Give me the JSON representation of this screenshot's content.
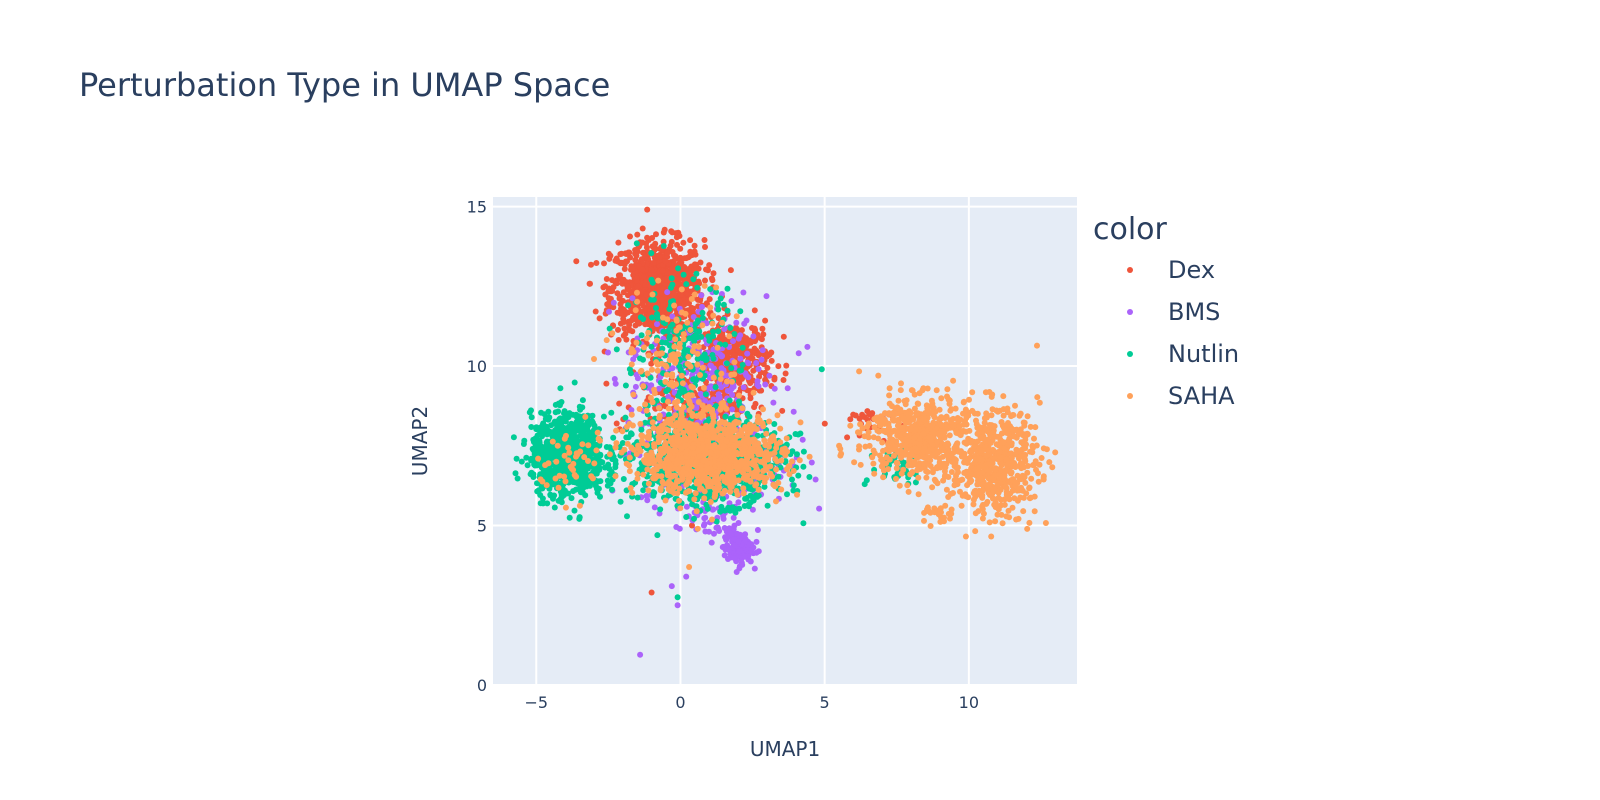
{
  "chart_data": {
    "type": "scatter",
    "title": "Perturbation Type in UMAP Space",
    "xlabel": "UMAP1",
    "ylabel": "UMAP2",
    "xlim": [
      -6.5,
      13.75
    ],
    "ylim": [
      0,
      15.3
    ],
    "xticks": [
      -5,
      0,
      5,
      10
    ],
    "xtick_labels": [
      "−5",
      "0",
      "5",
      "10"
    ],
    "yticks": [
      0,
      5,
      10,
      15
    ],
    "ytick_labels": [
      "0",
      "5",
      "10",
      "15"
    ],
    "grid": true,
    "legend_title": "color",
    "legend_position": "right",
    "note": "point clouds approximated as gaussian clusters (center x, center y, sd x, sd y, count)",
    "series": [
      {
        "name": "Dex",
        "color": "#EF553B",
        "clusters": [
          [
            -0.8,
            12.4,
            0.95,
            0.9,
            900
          ],
          [
            1.8,
            10.2,
            0.8,
            0.7,
            380
          ],
          [
            0.5,
            8.8,
            1.2,
            0.6,
            200
          ],
          [
            6.2,
            8.2,
            0.6,
            0.3,
            25
          ]
        ],
        "outliers": [
          [
            -1.0,
            2.9
          ],
          [
            0.4,
            5.0
          ]
        ]
      },
      {
        "name": "BMS",
        "color": "#AB63FA",
        "clusters": [
          [
            0.6,
            9.8,
            1.4,
            1.4,
            260
          ],
          [
            1.2,
            7.0,
            1.5,
            0.8,
            300
          ],
          [
            2.0,
            4.3,
            0.3,
            0.3,
            130
          ],
          [
            1.0,
            5.2,
            0.6,
            0.4,
            40
          ]
        ],
        "outliers": [
          [
            -1.4,
            0.95
          ],
          [
            -0.1,
            2.5
          ],
          [
            0.2,
            3.4
          ],
          [
            -0.3,
            3.1
          ],
          [
            4.4,
            10.6
          ],
          [
            4.1,
            10.4
          ]
        ]
      },
      {
        "name": "Nutlin",
        "color": "#00CC96",
        "clusters": [
          [
            -3.9,
            7.2,
            0.75,
            0.75,
            850
          ],
          [
            1.0,
            7.0,
            1.5,
            0.75,
            1000
          ],
          [
            0.0,
            10.2,
            1.2,
            1.5,
            220
          ],
          [
            7.6,
            6.9,
            0.6,
            0.4,
            40
          ]
        ],
        "outliers": [
          [
            -0.1,
            2.75
          ],
          [
            4.9,
            9.9
          ],
          [
            -1.3,
            10.2
          ],
          [
            -0.8,
            4.7
          ]
        ]
      },
      {
        "name": "SAHA",
        "color": "#FFA15A",
        "clusters": [
          [
            1.0,
            7.2,
            1.5,
            0.7,
            950
          ],
          [
            8.2,
            7.8,
            1.0,
            0.75,
            550
          ],
          [
            10.9,
            7.0,
            0.9,
            1.0,
            550
          ],
          [
            0.0,
            10.0,
            1.2,
            1.4,
            150
          ],
          [
            -3.8,
            7.0,
            0.7,
            0.7,
            40
          ],
          [
            9.0,
            5.3,
            0.3,
            0.2,
            25
          ]
        ],
        "outliers": [
          [
            0.3,
            3.7
          ],
          [
            0.6,
            4.9
          ],
          [
            5.5,
            7.5
          ]
        ]
      }
    ]
  }
}
